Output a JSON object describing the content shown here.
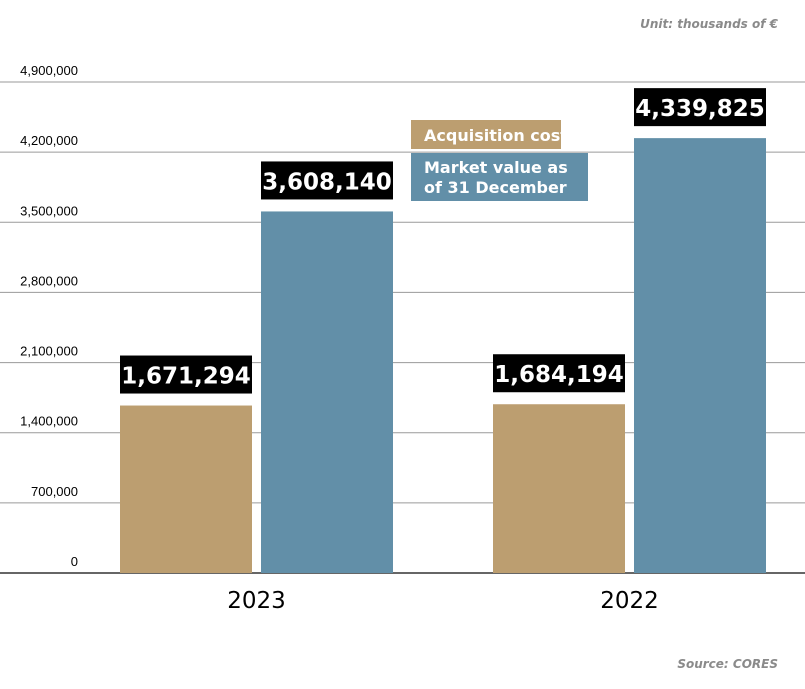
{
  "unit_note": "Unit: thousands of €",
  "source_note": "Source: CORES",
  "colors": {
    "acquisition": "#bc9e70",
    "market": "#628fa8",
    "label_bg": "#000000",
    "grid": "#9a9a9a",
    "axis": "#333333"
  },
  "chart_data": {
    "type": "bar",
    "categories": [
      "2023",
      "2022"
    ],
    "series": [
      {
        "name": "Acquisition cost",
        "values": [
          1671294,
          1684194
        ],
        "labels": [
          "1,671,294",
          "1,684,194"
        ]
      },
      {
        "name": "Market value as of 31 December",
        "legend_lines": [
          "Market value as",
          "of 31 December"
        ],
        "values": [
          3608140,
          4339825
        ],
        "labels": [
          "3,608,140",
          "4,339,825"
        ]
      }
    ],
    "yticks": [
      0,
      700000,
      1400000,
      2100000,
      2800000,
      3500000,
      4200000,
      4900000
    ],
    "ytick_labels": [
      "0",
      "700,000",
      "1,400,000",
      "2,100,000",
      "2,800,000",
      "3,500,000",
      "4,200,000",
      "4,900,000"
    ],
    "ylim": [
      0,
      4900000
    ],
    "grid": true,
    "legend_position": "top-center"
  }
}
